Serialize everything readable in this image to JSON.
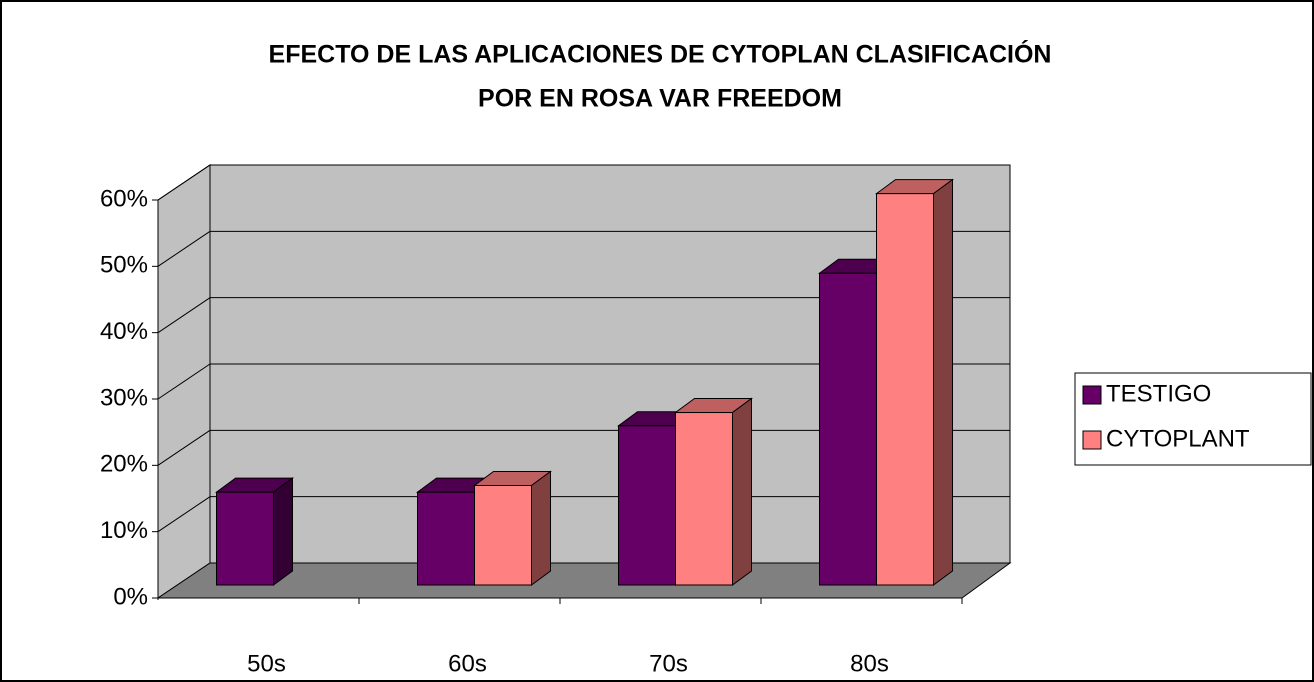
{
  "chart_data": {
    "type": "bar3d",
    "title": [
      "EFECTO DE LAS APLICACIONES DE CYTOPLAN CLASIFICACIÓN",
      "POR  EN ROSA VAR FREEDOM"
    ],
    "categories": [
      "50s",
      "60s",
      "70s",
      "80s"
    ],
    "series": [
      {
        "name": "TESTIGO",
        "color": "#660066",
        "values": [
          14,
          14,
          24,
          47
        ]
      },
      {
        "name": "CYTOPLANT",
        "color": "#ff8080",
        "values": [
          null,
          15,
          26,
          59
        ]
      }
    ],
    "ylim": [
      0,
      60
    ],
    "yticks": [
      {
        "value": 0,
        "label": "0%"
      },
      {
        "value": 10,
        "label": "10%"
      },
      {
        "value": 20,
        "label": "20%"
      },
      {
        "value": 30,
        "label": "30%"
      },
      {
        "value": 40,
        "label": "40%"
      },
      {
        "value": 50,
        "label": "50%"
      },
      {
        "value": 60,
        "label": "60%"
      }
    ],
    "grid": true,
    "legend": "right"
  }
}
